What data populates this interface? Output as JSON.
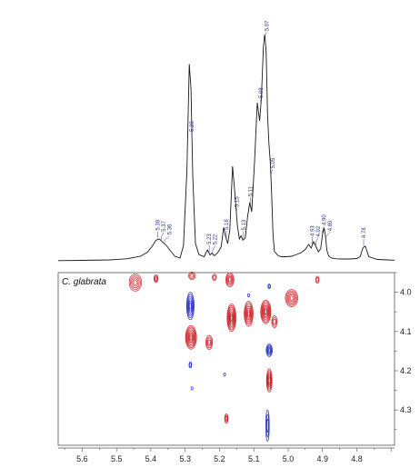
{
  "chart_data": [
    {
      "type": "line",
      "x_range": [
        5.67,
        4.69
      ],
      "series": [
        {
          "x": [
            5.67,
            5.6,
            5.52,
            5.47,
            5.43,
            5.41,
            5.395,
            5.385,
            5.375,
            5.365,
            5.355,
            5.345,
            5.33,
            5.315,
            5.305,
            5.295,
            5.288,
            5.283,
            5.278,
            5.27,
            5.26,
            5.245,
            5.235,
            5.228,
            5.222,
            5.215,
            5.205,
            5.195,
            5.188,
            5.182,
            5.176,
            5.17,
            5.162,
            5.155,
            5.148,
            5.142,
            5.137,
            5.132,
            5.125,
            5.118,
            5.112,
            5.106,
            5.098,
            5.09,
            5.083,
            5.078,
            5.072,
            5.068,
            5.064,
            5.06,
            5.056,
            5.052,
            5.048,
            5.044,
            5.04,
            5.03,
            5.02,
            5.005,
            4.99,
            4.975,
            4.962,
            4.95,
            4.94,
            4.933,
            4.926,
            4.92,
            4.912,
            4.905,
            4.9,
            4.895,
            4.891,
            4.887,
            4.882,
            4.875,
            4.86,
            4.84,
            4.82,
            4.8,
            4.79,
            4.782,
            4.775,
            4.765,
            4.74,
            4.71,
            4.69
          ],
          "y": [
            0.5,
            0.6,
            0.8,
            1.3,
            2.4,
            4.2,
            7.0,
            9.5,
            10.0,
            8.5,
            7.2,
            5.2,
            2.4,
            1.6,
            7.0,
            40.0,
            87.0,
            76.0,
            38.0,
            8.0,
            3.2,
            2.2,
            5.2,
            3.0,
            3.8,
            2.6,
            4.0,
            6.6,
            15.0,
            11.0,
            8.0,
            14.0,
            42.0,
            30.0,
            16.0,
            10.0,
            11.5,
            9.5,
            10.5,
            20.0,
            26.0,
            22.0,
            44.0,
            70.0,
            62.0,
            72.0,
            95.0,
            100.0,
            92.0,
            65.0,
            52.0,
            44.0,
            30.0,
            12.0,
            4.5,
            2.8,
            2.2,
            2.2,
            2.4,
            3.2,
            4.0,
            5.4,
            7.6,
            6.0,
            8.8,
            7.0,
            4.4,
            5.8,
            12.0,
            14.8,
            11.0,
            5.0,
            2.6,
            1.7,
            1.3,
            1.2,
            1.2,
            1.4,
            2.2,
            6.2,
            6.8,
            2.2,
            1.0,
            0.8,
            0.7
          ]
        }
      ],
      "peak_labels": [
        {
          "x": 5.38,
          "text": "5.38"
        },
        {
          "x": 5.37,
          "text": "5.37"
        },
        {
          "x": 5.36,
          "text": "5.36"
        },
        {
          "x": 5.28,
          "text": "5.28"
        },
        {
          "x": 5.23,
          "text": "5.23"
        },
        {
          "x": 5.22,
          "text": "5.22"
        },
        {
          "x": 5.18,
          "text": "5.18"
        },
        {
          "x": 5.15,
          "text": "5.15"
        },
        {
          "x": 5.13,
          "text": "5.13"
        },
        {
          "x": 5.11,
          "text": "5.11"
        },
        {
          "x": 5.08,
          "text": "5.08"
        },
        {
          "x": 5.07,
          "text": "5.07"
        },
        {
          "x": 5.05,
          "text": "5.05"
        },
        {
          "x": 4.93,
          "text": "4.93"
        },
        {
          "x": 4.92,
          "text": "4.92"
        },
        {
          "x": 4.9,
          "text": "4.90"
        },
        {
          "x": 4.89,
          "text": "4.89"
        },
        {
          "x": 4.78,
          "text": "4.78"
        }
      ]
    },
    {
      "type": "heatmap",
      "title": "C. glabrata",
      "x_range": [
        5.67,
        4.69
      ],
      "y_range": [
        3.95,
        4.39
      ],
      "x_ticks": [
        {
          "value": 5.6,
          "label": "5.6"
        },
        {
          "value": 5.5,
          "label": "5.5"
        },
        {
          "value": 5.4,
          "label": "5.4"
        },
        {
          "value": 5.3,
          "label": "5.3"
        },
        {
          "value": 5.2,
          "label": "5.2"
        },
        {
          "value": 5.1,
          "label": "5.1"
        },
        {
          "value": 5.0,
          "label": "5.0"
        },
        {
          "value": 4.9,
          "label": "4.9"
        },
        {
          "value": 4.8,
          "label": "4.8"
        }
      ],
      "y_ticks": [
        {
          "value": 4.0,
          "label": "4.0"
        },
        {
          "value": 4.1,
          "label": "4.1"
        },
        {
          "value": 4.2,
          "label": "4.2"
        },
        {
          "value": 4.3,
          "label": "4.3"
        }
      ],
      "positive_color": "#d0242b",
      "negative_color": "#2632c8",
      "peaks": [
        {
          "x": 5.445,
          "y": 3.975,
          "wx": 0.018,
          "wy": 0.022,
          "sign": "positive",
          "levels": 5
        },
        {
          "x": 5.385,
          "y": 3.965,
          "wx": 0.006,
          "wy": 0.01,
          "sign": "positive",
          "levels": 3
        },
        {
          "x": 5.28,
          "y": 3.958,
          "wx": 0.01,
          "wy": 0.01,
          "sign": "positive",
          "levels": 3
        },
        {
          "x": 5.215,
          "y": 3.962,
          "wx": 0.006,
          "wy": 0.008,
          "sign": "positive",
          "levels": 2
        },
        {
          "x": 5.17,
          "y": 3.968,
          "wx": 0.012,
          "wy": 0.018,
          "sign": "positive",
          "levels": 5
        },
        {
          "x": 5.285,
          "y": 4.035,
          "wx": 0.011,
          "wy": 0.035,
          "sign": "negative",
          "levels": 6
        },
        {
          "x": 5.283,
          "y": 4.115,
          "wx": 0.016,
          "wy": 0.03,
          "sign": "positive",
          "levels": 8
        },
        {
          "x": 5.23,
          "y": 4.128,
          "wx": 0.01,
          "wy": 0.018,
          "sign": "positive",
          "levels": 4
        },
        {
          "x": 5.165,
          "y": 4.065,
          "wx": 0.013,
          "wy": 0.035,
          "sign": "positive",
          "levels": 8
        },
        {
          "x": 5.115,
          "y": 4.055,
          "wx": 0.013,
          "wy": 0.032,
          "sign": "positive",
          "levels": 7
        },
        {
          "x": 5.065,
          "y": 4.05,
          "wx": 0.015,
          "wy": 0.03,
          "sign": "positive",
          "levels": 8
        },
        {
          "x": 5.04,
          "y": 4.075,
          "wx": 0.008,
          "wy": 0.015,
          "sign": "positive",
          "levels": 3
        },
        {
          "x": 5.055,
          "y": 4.148,
          "wx": 0.009,
          "wy": 0.016,
          "sign": "negative",
          "levels": 5
        },
        {
          "x": 5.055,
          "y": 4.225,
          "wx": 0.008,
          "wy": 0.03,
          "sign": "positive",
          "levels": 6
        },
        {
          "x": 5.06,
          "y": 4.34,
          "wx": 0.005,
          "wy": 0.04,
          "sign": "negative",
          "levels": 3
        },
        {
          "x": 4.99,
          "y": 4.015,
          "wx": 0.018,
          "wy": 0.022,
          "sign": "positive",
          "levels": 6
        },
        {
          "x": 4.915,
          "y": 3.968,
          "wx": 0.005,
          "wy": 0.009,
          "sign": "positive",
          "levels": 2
        },
        {
          "x": 5.18,
          "y": 4.322,
          "wx": 0.005,
          "wy": 0.012,
          "sign": "positive",
          "levels": 3
        },
        {
          "x": 5.285,
          "y": 4.185,
          "wx": 0.004,
          "wy": 0.008,
          "sign": "negative",
          "levels": 2
        },
        {
          "x": 5.28,
          "y": 4.245,
          "wx": 0.003,
          "wy": 0.004,
          "sign": "negative",
          "levels": 1
        },
        {
          "x": 5.185,
          "y": 4.21,
          "wx": 0.003,
          "wy": 0.004,
          "sign": "negative",
          "levels": 1
        },
        {
          "x": 5.115,
          "y": 4.008,
          "wx": 0.003,
          "wy": 0.004,
          "sign": "negative",
          "levels": 1
        },
        {
          "x": 5.055,
          "y": 3.985,
          "wx": 0.004,
          "wy": 0.006,
          "sign": "negative",
          "levels": 2
        }
      ]
    }
  ]
}
